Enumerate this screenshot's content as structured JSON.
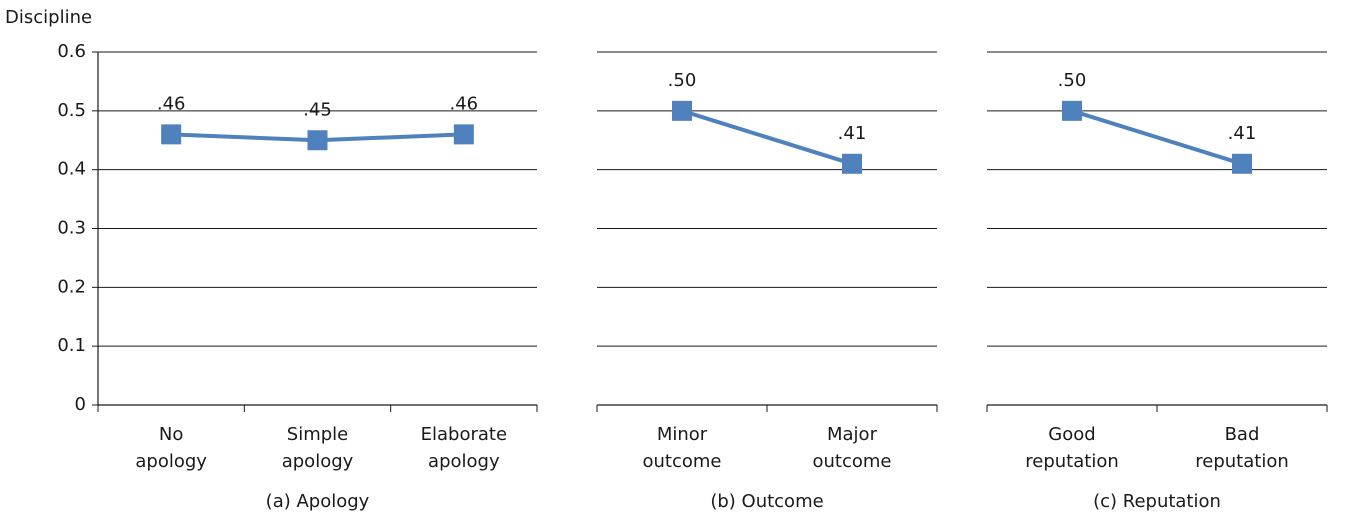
{
  "chart_data": [
    {
      "type": "line",
      "ylabel": "Discipline",
      "xlabel": "(a) Apology",
      "categories": [
        "No apology",
        "Simple apology",
        "Elaborate apology"
      ],
      "series": [
        {
          "color": "#4f81bd",
          "values": [
            0.46,
            0.45,
            0.46
          ],
          "value_labels": [
            ".46",
            ".45",
            ".46"
          ]
        }
      ],
      "ylim": [
        0,
        0.6
      ],
      "yticks": [
        0,
        0.1,
        0.2,
        0.3,
        0.4,
        0.5,
        0.6
      ],
      "grid": true
    },
    {
      "type": "line",
      "xlabel": "(b) Outcome",
      "categories": [
        "Minor outcome",
        "Major outcome"
      ],
      "series": [
        {
          "color": "#4f81bd",
          "values": [
            0.5,
            0.41
          ],
          "value_labels": [
            ".50",
            ".41"
          ]
        }
      ],
      "ylim": [
        0,
        0.6
      ],
      "yticks": [
        0,
        0.1,
        0.2,
        0.3,
        0.4,
        0.5,
        0.6
      ],
      "grid": true
    },
    {
      "type": "line",
      "xlabel": "(c) Reputation",
      "categories": [
        "Good reputation",
        "Bad reputation"
      ],
      "series": [
        {
          "color": "#4f81bd",
          "values": [
            0.5,
            0.41
          ],
          "value_labels": [
            ".50",
            ".41"
          ]
        }
      ],
      "ylim": [
        0,
        0.6
      ],
      "yticks": [
        0,
        0.1,
        0.2,
        0.3,
        0.4,
        0.5,
        0.6
      ],
      "grid": true
    }
  ]
}
